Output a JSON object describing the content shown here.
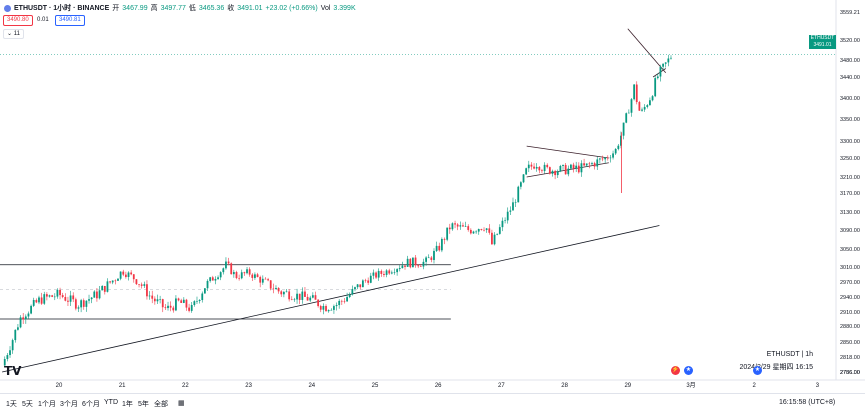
{
  "header": {
    "symbol": "ETHUSDT · 1小时 · BINANCE",
    "open_label": "开",
    "open_value": "3467.99",
    "high_label": "高",
    "high_value": "3497.77",
    "low_label": "低",
    "low_value": "3465.36",
    "close_label": "收",
    "close_value": "3491.01",
    "change": "+23.02 (+0.66%)",
    "volume_label": "Vol",
    "volume_value": "3.399K"
  },
  "trade": {
    "bid": "3490.80",
    "spread": "0.01",
    "ask": "3490.81"
  },
  "indicator_toggle": "11",
  "price_tag": {
    "symbol": "ETHUSDT",
    "price": "3491.01",
    "countdown": "44:01"
  },
  "watermark": {
    "line1": "ETHUSDT | 1h",
    "line2": "2024/2/29 星期四 16:15"
  },
  "bottom": {
    "timeframes": [
      "1天",
      "5天",
      "1个月",
      "3个月",
      "6个月",
      "YTD",
      "1年",
      "5年",
      "全部"
    ],
    "clock": "16:15:58 (UTC+8)"
  },
  "colors": {
    "up": "#089981",
    "down": "#f23645",
    "line": "#131722",
    "accent": "#2962ff"
  },
  "chart_data": {
    "type": "candlestick",
    "title": "ETHUSDT · 1小时 · BINANCE",
    "y_axis_ticks": [
      3559.21,
      3520.0,
      3480.0,
      3440.0,
      3400.0,
      3350.0,
      3300.0,
      3250.0,
      3210.0,
      3170.0,
      3130.0,
      3090.0,
      3050.0,
      3010.0,
      2970.0,
      2940.0,
      2910.0,
      2880.0,
      2850.0,
      2818.0,
      2786.0,
      2756.0
    ],
    "y_axis_labels": [
      "3559.21",
      "3520.00",
      "3480.00",
      "3440.00",
      "3400.00",
      "3350.00",
      "3300.00",
      "3250.00",
      "3210.00",
      "3170.00",
      "3130.00",
      "3090.00",
      "3050.00",
      "3010.00",
      "2970.00",
      "2940.00",
      "2910.00",
      "2880.00",
      "2850.00",
      "2818.00",
      "2786.00",
      "2756.00"
    ],
    "x_axis_labels": [
      "20",
      "21",
      "22",
      "23",
      "24",
      "25",
      "26",
      "27",
      "28",
      "29",
      "3月",
      "2",
      "3"
    ],
    "x_axis_day_index": [
      0,
      1,
      2,
      3,
      4,
      5,
      6,
      7,
      8,
      9,
      10,
      11,
      12
    ],
    "close_path": [
      [
        -0.9,
        2800
      ],
      [
        -0.6,
        2900
      ],
      [
        -0.3,
        2935
      ],
      [
        0.0,
        2945
      ],
      [
        0.3,
        2925
      ],
      [
        0.6,
        2945
      ],
      [
        0.9,
        2980
      ],
      [
        1.0,
        3000
      ],
      [
        1.15,
        2985
      ],
      [
        1.3,
        2965
      ],
      [
        1.45,
        2940
      ],
      [
        1.7,
        2915
      ],
      [
        1.9,
        2930
      ],
      [
        2.1,
        2915
      ],
      [
        2.3,
        2960
      ],
      [
        2.5,
        2990
      ],
      [
        2.65,
        3015
      ],
      [
        2.8,
        2985
      ],
      [
        3.0,
        2995
      ],
      [
        3.2,
        2975
      ],
      [
        3.5,
        2950
      ],
      [
        3.7,
        2945
      ],
      [
        4.0,
        2935
      ],
      [
        4.2,
        2920
      ],
      [
        4.4,
        2925
      ],
      [
        4.6,
        2945
      ],
      [
        4.9,
        2980
      ],
      [
        5.2,
        3000
      ],
      [
        5.5,
        3020
      ],
      [
        5.8,
        3020
      ],
      [
        6.0,
        3050
      ],
      [
        6.2,
        3100
      ],
      [
        6.5,
        3090
      ],
      [
        6.75,
        3100
      ],
      [
        6.85,
        3060
      ],
      [
        7.0,
        3100
      ],
      [
        7.2,
        3150
      ],
      [
        7.4,
        3225
      ],
      [
        7.55,
        3240
      ],
      [
        7.7,
        3225
      ],
      [
        8.0,
        3225
      ],
      [
        8.3,
        3230
      ],
      [
        8.65,
        3250
      ],
      [
        8.8,
        3270
      ],
      [
        8.95,
        3340
      ],
      [
        9.1,
        3420
      ],
      [
        9.2,
        3360
      ],
      [
        9.35,
        3400
      ],
      [
        9.5,
        3450
      ],
      [
        9.7,
        3491
      ]
    ],
    "wick_spike": {
      "day": 8.9,
      "low": 3170,
      "high": 3320
    },
    "last_close": 3491.01,
    "annotations": {
      "range_resistance": 3015,
      "range_support": 2895,
      "range_mid_dashed": 2955,
      "range_start_day": -0.9,
      "range_end_day": 6.2,
      "trendline": [
        [
          -0.9,
          2760
        ],
        [
          9.5,
          3100
        ]
      ],
      "triangle_upper": [
        [
          7.4,
          3285
        ],
        [
          8.7,
          3250
        ]
      ],
      "triangle_lower": [
        [
          7.4,
          3210
        ],
        [
          8.7,
          3240
        ]
      ],
      "wedge_upper": [
        [
          9.0,
          3545
        ],
        [
          9.6,
          3450
        ]
      ],
      "wedge_lower": [
        [
          9.4,
          3440
        ],
        [
          9.6,
          3460
        ]
      ],
      "current_price_line": 3491.01
    }
  }
}
